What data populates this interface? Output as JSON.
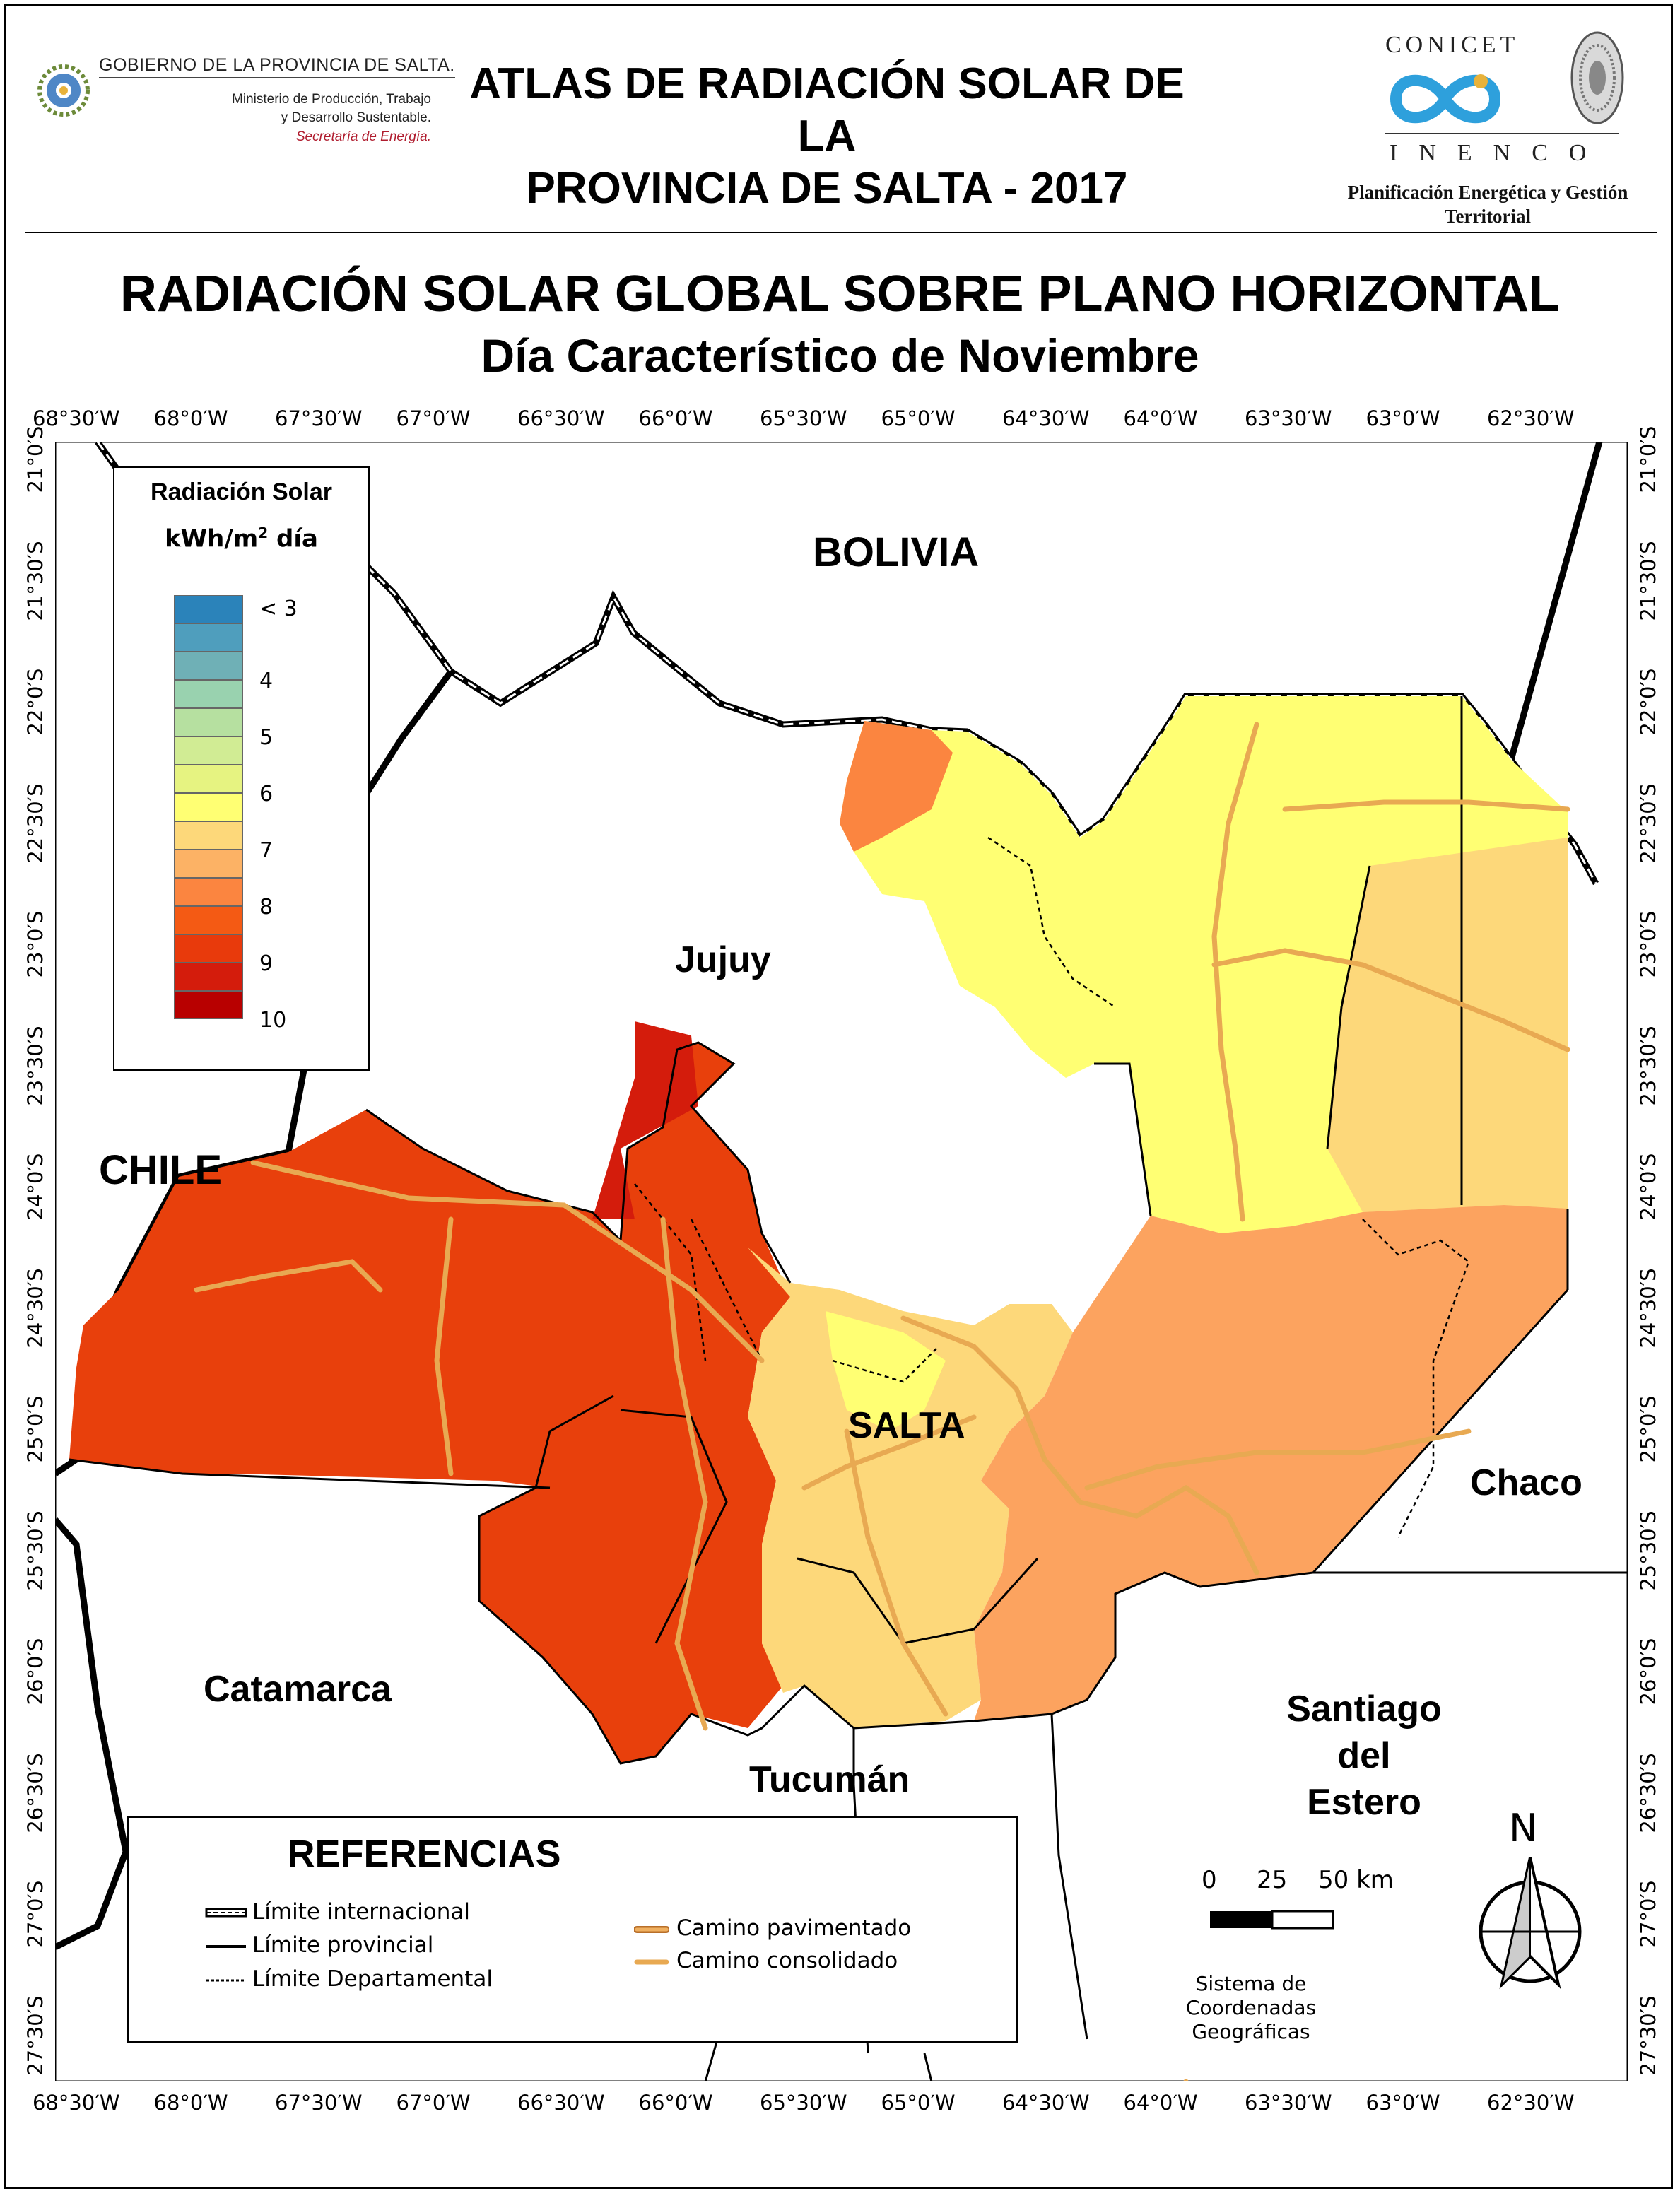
{
  "header": {
    "gov_name": "GOBIERNO DE LA PROVINCIA DE SALTA.",
    "ministry_line1": "Ministerio de Producción, Trabajo",
    "ministry_line2": "y Desarrollo Sustentable.",
    "secretaria": "Secretaría de Energía.",
    "atlas_title_line1": "ATLAS DE RADIACIÓN SOLAR DE LA",
    "atlas_title_line2": "PROVINCIA DE SALTA - 2017",
    "conicet": "CONICET",
    "inenco": "INENCO",
    "inenco_sub_line1": "Planificación Energética y Gestión",
    "inenco_sub_line2": "Territorial"
  },
  "map_title": {
    "line1": "RADIACIÓN SOLAR GLOBAL SOBRE PLANO HORIZONTAL",
    "line2": "Día Característico de Noviembre"
  },
  "axes": {
    "longitude_ticks": [
      "68°30′W",
      "68°0′W",
      "67°30′W",
      "67°0′W",
      "66°30′W",
      "66°0′W",
      "65°30′W",
      "65°0′W",
      "64°30′W",
      "64°0′W",
      "63°30′W",
      "63°0′W",
      "62°30′W"
    ],
    "latitude_ticks": [
      "21°0′S",
      "21°30′S",
      "22°0′S",
      "22°30′S",
      "23°0′S",
      "23°30′S",
      "24°0′S",
      "24°30′S",
      "25°0′S",
      "25°30′S",
      "26°0′S",
      "26°30′S",
      "27°0′S",
      "27°30′S"
    ]
  },
  "places": {
    "bolivia": "BOLIVIA",
    "chile": "CHILE",
    "jujuy": "Jujuy",
    "salta": "SALTA",
    "chaco": "Chaco",
    "catamarca": "Catamarca",
    "tucuman": "Tucumán",
    "santiago_line1": "Santiago",
    "santiago_line2": "del",
    "santiago_line3": "Estero"
  },
  "legend": {
    "title": "Radiación Solar",
    "unit_prefix": "kWh/m",
    "unit_exp": "2",
    "unit_suffix": " día",
    "classes": [
      {
        "color": "#2b83ba",
        "label": "< 3"
      },
      {
        "color": "#4f9ebd",
        "label": ""
      },
      {
        "color": "#6fb0b6",
        "label": "4"
      },
      {
        "color": "#99d2af",
        "label": ""
      },
      {
        "color": "#b6e0a0",
        "label": "5"
      },
      {
        "color": "#d1ec94",
        "label": ""
      },
      {
        "color": "#e6f381",
        "label": "6"
      },
      {
        "color": "#ffff73",
        "label": ""
      },
      {
        "color": "#fdd87a",
        "label": "7"
      },
      {
        "color": "#fcb265",
        "label": ""
      },
      {
        "color": "#fb8540",
        "label": "8"
      },
      {
        "color": "#f45a14",
        "label": ""
      },
      {
        "color": "#e83a0c",
        "label": "9"
      },
      {
        "color": "#d41c0c",
        "label": ""
      },
      {
        "color": "#b80000",
        "label": "10"
      }
    ]
  },
  "references": {
    "title": "REFERENCIAS",
    "intl": "Límite internacional",
    "prov": "Límite provincial",
    "dept": "Límite Departamental",
    "paved": "Camino pavimentado",
    "consolidated": "Camino consolidado"
  },
  "scale": {
    "labels": [
      "0",
      "25",
      "50 km"
    ]
  },
  "coord_system": {
    "line1": "Sistema de Coordenadas",
    "line2": "Geográficas"
  },
  "north": "N",
  "colors": {
    "red_zone": "#e8400c",
    "orange_zone": "#fca35f",
    "light_orange": "#fdd87a",
    "yellow_zone": "#ffff73"
  }
}
